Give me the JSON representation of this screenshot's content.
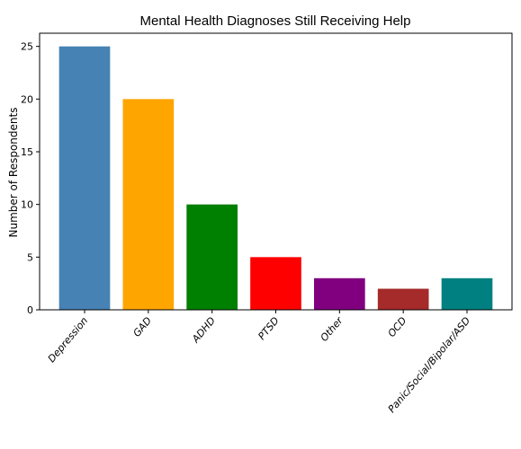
{
  "chart_data": {
    "type": "bar",
    "title": "Mental Health Diagnoses Still Receiving Help",
    "xlabel": "",
    "ylabel": "Number of Respondents",
    "categories": [
      "Depression",
      "GAD",
      "ADHD",
      "PTSD",
      "Other",
      "OCD",
      "Panic/Social/Bipolar/ASD"
    ],
    "values": [
      25,
      20,
      10,
      5,
      3,
      2,
      3
    ],
    "colors": [
      "#4682b4",
      "#ffa500",
      "#008000",
      "#ff0000",
      "#800080",
      "#a52a2a",
      "#008080"
    ],
    "ylim": [
      0,
      26.25
    ],
    "yticks": [
      "0",
      "5",
      "10",
      "15",
      "20",
      "25"
    ],
    "grid": false,
    "legend": false
  }
}
